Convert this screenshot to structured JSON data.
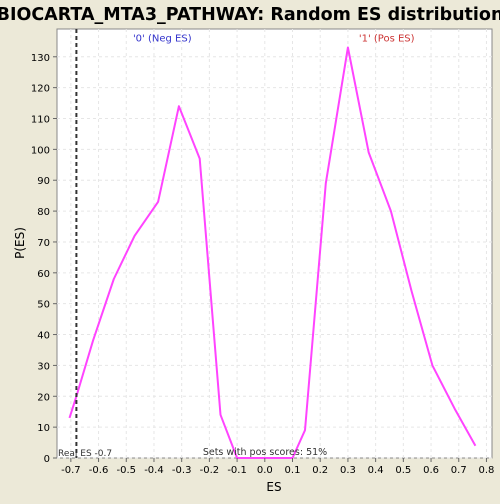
{
  "chart_data": {
    "type": "line",
    "title": "BIOCARTA_MTA3_PATHWAY: Random ES distribution",
    "xlabel": "ES",
    "ylabel": "P(ES)",
    "xlim": [
      -0.75,
      0.82
    ],
    "ylim": [
      0,
      139
    ],
    "xticks": [
      -0.7,
      -0.6,
      -0.5,
      -0.4,
      -0.3,
      -0.2,
      -0.1,
      0.0,
      0.1,
      0.2,
      0.3,
      0.4,
      0.5,
      0.6,
      0.7,
      0.8
    ],
    "xtick_labels": [
      "-0.7",
      "-0.6",
      "-0.5",
      "-0.4",
      "-0.3",
      "-0.2",
      "-0.1",
      "0.0",
      "0.1",
      "0.2",
      "0.3",
      "0.4",
      "0.5",
      "0.6",
      "0.7",
      "0.8"
    ],
    "yticks": [
      0,
      10,
      20,
      30,
      40,
      50,
      60,
      70,
      80,
      90,
      100,
      110,
      120,
      130
    ],
    "ytick_labels": [
      "0",
      "10",
      "20",
      "30",
      "40",
      "50",
      "60",
      "70",
      "80",
      "90",
      "100",
      "110",
      "120",
      "130"
    ],
    "grid": true,
    "series": [
      {
        "color": "#FF44FF",
        "x": [
          -0.705,
          -0.68,
          -0.62,
          -0.545,
          -0.47,
          -0.385,
          -0.31,
          -0.235,
          -0.16,
          -0.1,
          0.0,
          0.1,
          0.145,
          0.22,
          0.3,
          0.375,
          0.455,
          0.53,
          0.605,
          0.685,
          0.76
        ],
        "y": [
          13,
          20,
          38,
          58,
          72,
          83,
          114,
          97,
          14,
          0,
          0,
          0,
          9,
          89,
          133,
          99,
          80,
          54,
          30,
          16,
          4
        ]
      }
    ],
    "real_es": {
      "value": -0.68,
      "label": "Real ES -0.7",
      "color": "#333333"
    },
    "annotations": [
      {
        "text": "'0' (Neg ES)",
        "x": -0.37,
        "y": 135,
        "color": "#3333CC"
      },
      {
        "text": "'1' (Pos ES)",
        "x": 0.44,
        "y": 135,
        "color": "#CC3333"
      }
    ],
    "footer_text": "Sets with pos scores: 51%"
  }
}
